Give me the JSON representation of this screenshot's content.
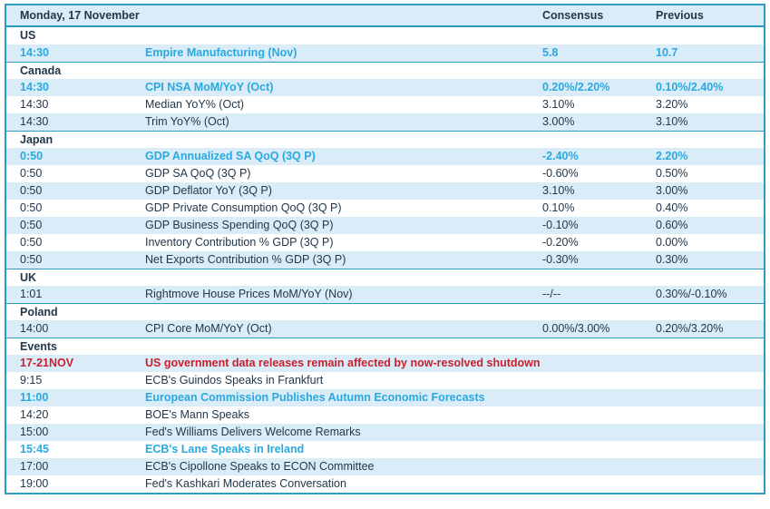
{
  "colors": {
    "frame": "#2e9bc1",
    "stripe": "#d9ecf7",
    "ink": "#22374a",
    "accent": "#29a9e0",
    "red": "#c9202f"
  },
  "header": {
    "title": "Monday, 17 November",
    "columns": [
      "Consensus",
      "Previous"
    ]
  },
  "rows": [
    {
      "type": "section",
      "label": "US"
    },
    {
      "type": "data",
      "time": "14:30",
      "label": "Empire Manufacturing (Nov)",
      "consensus": "5.8",
      "previous": "10.7",
      "emphasis": "highlight"
    },
    {
      "type": "section",
      "label": "Canada"
    },
    {
      "type": "data",
      "time": "14:30",
      "label": "CPI NSA MoM/YoY (Oct)",
      "consensus": "0.20%/2.20%",
      "previous": "0.10%/2.40%",
      "emphasis": "highlight"
    },
    {
      "type": "data",
      "time": "14:30",
      "label": "Median YoY% (Oct)",
      "consensus": "3.10%",
      "previous": "3.20%"
    },
    {
      "type": "data",
      "time": "14:30",
      "label": "Trim YoY% (Oct)",
      "consensus": "3.00%",
      "previous": "3.10%"
    },
    {
      "type": "section",
      "label": "Japan"
    },
    {
      "type": "data",
      "time": "0:50",
      "label": "GDP Annualized SA QoQ (3Q P)",
      "consensus": "-2.40%",
      "previous": "2.20%",
      "emphasis": "highlight"
    },
    {
      "type": "data",
      "time": "0:50",
      "label": "GDP SA QoQ (3Q P)",
      "consensus": "-0.60%",
      "previous": "0.50%"
    },
    {
      "type": "data",
      "time": "0:50",
      "label": "GDP Deflator YoY (3Q P)",
      "consensus": "3.10%",
      "previous": "3.00%"
    },
    {
      "type": "data",
      "time": "0:50",
      "label": "GDP Private Consumption QoQ (3Q P)",
      "consensus": "0.10%",
      "previous": "0.40%"
    },
    {
      "type": "data",
      "time": "0:50",
      "label": "GDP Business Spending QoQ (3Q P)",
      "consensus": "-0.10%",
      "previous": "0.60%"
    },
    {
      "type": "data",
      "time": "0:50",
      "label": "Inventory Contribution % GDP (3Q P)",
      "consensus": "-0.20%",
      "previous": "0.00%"
    },
    {
      "type": "data",
      "time": "0:50",
      "label": "Net Exports Contribution % GDP (3Q P)",
      "consensus": "-0.30%",
      "previous": "0.30%"
    },
    {
      "type": "section",
      "label": "UK"
    },
    {
      "type": "data",
      "time": "1:01",
      "label": "Rightmove House Prices MoM/YoY (Nov)",
      "consensus": "--/--",
      "previous": "0.30%/-0.10%"
    },
    {
      "type": "section",
      "label": "Poland"
    },
    {
      "type": "data",
      "time": "14:00",
      "label": "CPI Core MoM/YoY (Oct)",
      "consensus": "0.00%/3.00%",
      "previous": "0.20%/3.20%"
    },
    {
      "type": "section",
      "label": "Events"
    },
    {
      "type": "data",
      "time": "17-21NOV",
      "label": "US government data releases remain affected by now-resolved shutdown",
      "consensus": "",
      "previous": "",
      "emphasis": "red"
    },
    {
      "type": "data",
      "time": "9:15",
      "label": "ECB's Guindos Speaks in Frankfurt",
      "consensus": "",
      "previous": ""
    },
    {
      "type": "data",
      "time": "11:00",
      "label": "European Commission Publishes Autumn Economic Forecasts",
      "consensus": "",
      "previous": "",
      "emphasis": "highlight"
    },
    {
      "type": "data",
      "time": "14:20",
      "label": "BOE's Mann Speaks",
      "consensus": "",
      "previous": ""
    },
    {
      "type": "data",
      "time": "15:00",
      "label": "Fed's Williams Delivers Welcome Remarks",
      "consensus": "",
      "previous": ""
    },
    {
      "type": "data",
      "time": "15:45",
      "label": "ECB's Lane Speaks in Ireland",
      "consensus": "",
      "previous": "",
      "emphasis": "highlight"
    },
    {
      "type": "data",
      "time": "17:00",
      "label": "ECB's Cipollone Speaks to ECON Committee",
      "consensus": "",
      "previous": ""
    },
    {
      "type": "data",
      "time": "19:00",
      "label": "Fed's Kashkari Moderates Conversation",
      "consensus": "",
      "previous": ""
    }
  ]
}
